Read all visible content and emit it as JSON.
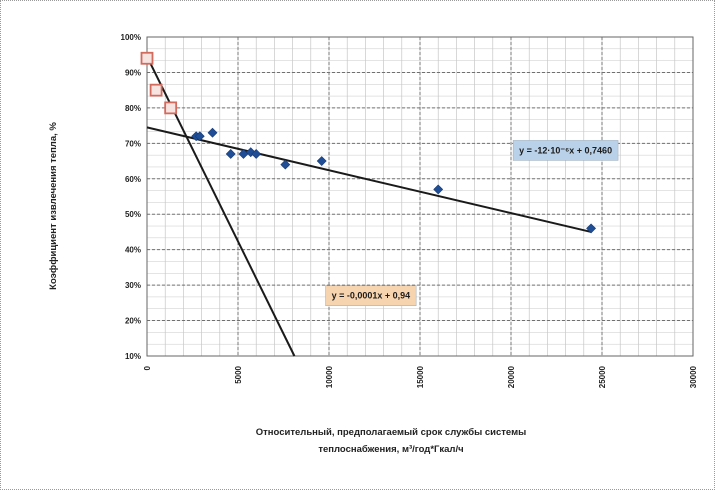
{
  "chart_data": {
    "type": "scatter",
    "title": "",
    "ylabel": "Коэффициент извлечения тепла, %",
    "xlabel_lines": [
      "Относительный, предполагаемый срок службы системы",
      "теплоснабжения, м³/год*Гкал/ч"
    ],
    "xlim": [
      0,
      30000
    ],
    "ylim": [
      0.1,
      1.0
    ],
    "x_ticks": [
      {
        "value": 0,
        "label": "0"
      },
      {
        "value": 5000,
        "label": "5000"
      },
      {
        "value": 10000,
        "label": "10000"
      },
      {
        "value": 15000,
        "label": "15000"
      },
      {
        "value": 20000,
        "label": "20000"
      },
      {
        "value": 25000,
        "label": "25000"
      },
      {
        "value": 30000,
        "label": "30000"
      }
    ],
    "y_ticks": [
      {
        "value": 0.1,
        "label": "10%"
      },
      {
        "value": 0.2,
        "label": "20%"
      },
      {
        "value": 0.3,
        "label": "30%"
      },
      {
        "value": 0.4,
        "label": "40%"
      },
      {
        "value": 0.5,
        "label": "50%"
      },
      {
        "value": 0.6,
        "label": "60%"
      },
      {
        "value": 0.7,
        "label": "70%"
      },
      {
        "value": 0.8,
        "label": "80%"
      },
      {
        "value": 0.9,
        "label": "90%"
      },
      {
        "value": 1.0,
        "label": "100%"
      }
    ],
    "grid": true,
    "legend": "none",
    "series": [
      {
        "marker": "diamond",
        "color": "#1f4e96",
        "points": [
          {
            "x": 2700,
            "y": 0.72
          },
          {
            "x": 2900,
            "y": 0.72
          },
          {
            "x": 3600,
            "y": 0.73
          },
          {
            "x": 4600,
            "y": 0.67
          },
          {
            "x": 5300,
            "y": 0.67
          },
          {
            "x": 5700,
            "y": 0.675
          },
          {
            "x": 6000,
            "y": 0.67
          },
          {
            "x": 7600,
            "y": 0.64
          },
          {
            "x": 9600,
            "y": 0.65
          },
          {
            "x": 16000,
            "y": 0.57
          },
          {
            "x": 24400,
            "y": 0.46
          }
        ]
      },
      {
        "marker": "square",
        "color": "#d36a5e",
        "points": [
          {
            "x": 0,
            "y": 0.94
          },
          {
            "x": 500,
            "y": 0.85
          },
          {
            "x": 1300,
            "y": 0.8
          }
        ]
      }
    ],
    "trendlines": [
      {
        "x": [
          0,
          24400
        ],
        "y": [
          0.745,
          0.45
        ],
        "color": "#1a1a1a",
        "label": "y = -12·10⁻⁶x + 0,7460",
        "label_bg": "#b9d2ea",
        "label_at": {
          "x": 23000,
          "y": 0.68
        }
      },
      {
        "x": [
          0,
          8100
        ],
        "y": [
          0.945,
          0.1
        ],
        "color": "#1a1a1a",
        "label": "y = -0,0001x + 0,94",
        "label_bg": "#f7d4b0",
        "label_at": {
          "x": 12300,
          "y": 0.27
        }
      }
    ]
  }
}
